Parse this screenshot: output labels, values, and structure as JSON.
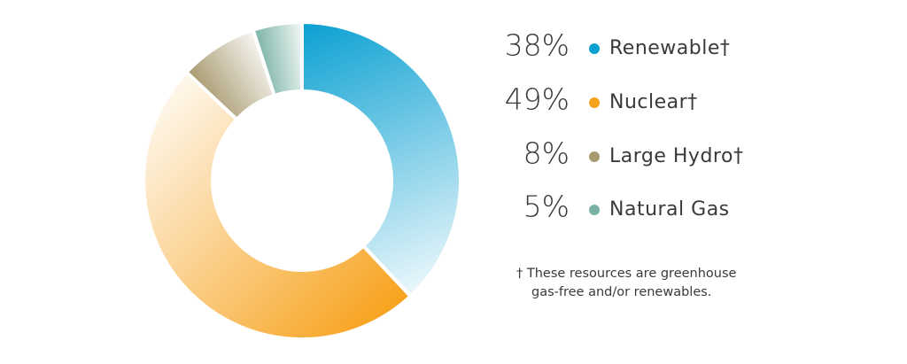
{
  "chart_data": {
    "type": "pie",
    "donut": true,
    "categories": [
      "Renewable†",
      "Nuclear†",
      "Large Hydro†",
      "Natural Gas"
    ],
    "values": [
      38,
      49,
      8,
      5
    ],
    "value_labels": [
      "38%",
      "49%",
      "8%",
      "5%"
    ],
    "colors": [
      "#0aa0d2",
      "#f7a21c",
      "#a89a70",
      "#79b2a4"
    ],
    "note": [
      "† These resources are greenhouse",
      "gas-free and/or renewables."
    ]
  }
}
